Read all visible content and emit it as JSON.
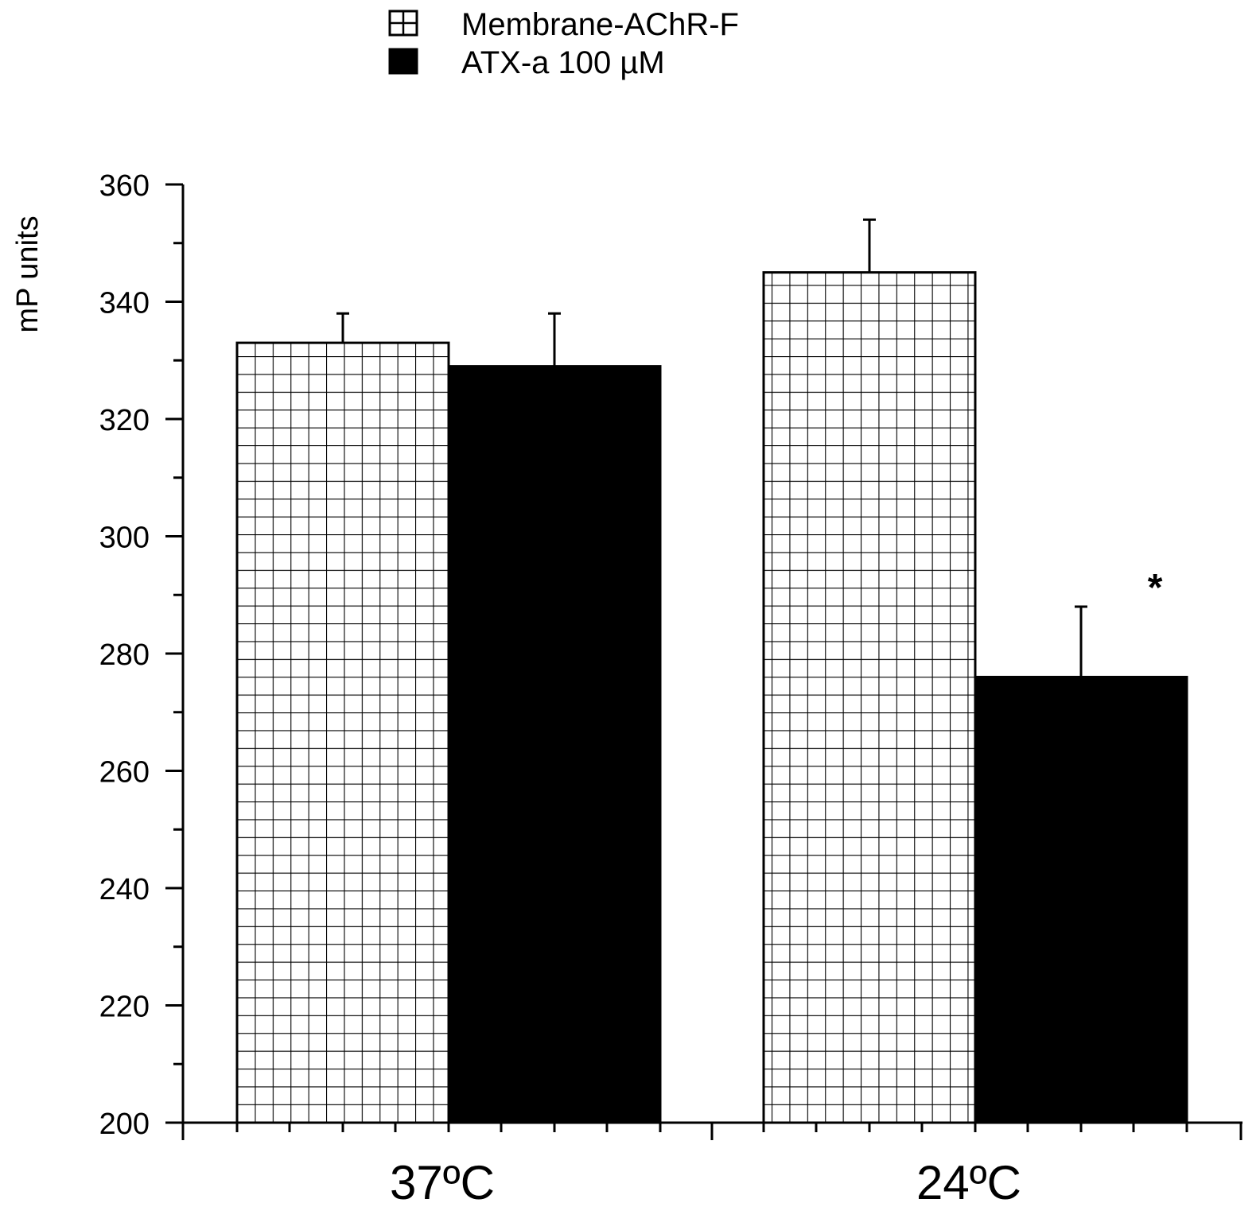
{
  "chart_data": {
    "type": "bar",
    "categories": [
      "37ºC",
      "24ºC"
    ],
    "series": [
      {
        "name": "Membrane-AChR-F",
        "values": [
          333,
          345
        ],
        "errors": [
          5,
          9
        ],
        "fill": "grid-pattern"
      },
      {
        "name": "ATX-a 100 µM",
        "values": [
          329,
          276
        ],
        "errors": [
          9,
          12
        ],
        "fill": "#000000"
      }
    ],
    "ylabel": "mP units",
    "xlabel": "",
    "title": "",
    "ylim": [
      200,
      360
    ],
    "yticks": [
      200,
      220,
      240,
      260,
      280,
      300,
      320,
      340,
      360
    ],
    "y_minor_step": 10,
    "legend_position": "top-center",
    "annotations": [
      {
        "text": "*",
        "category": "24ºC",
        "series": "ATX-a 100 µM"
      }
    ],
    "colors": {
      "axis": "#000000",
      "bar_fill": "#000000",
      "pattern_bg": "#ffffff"
    }
  }
}
